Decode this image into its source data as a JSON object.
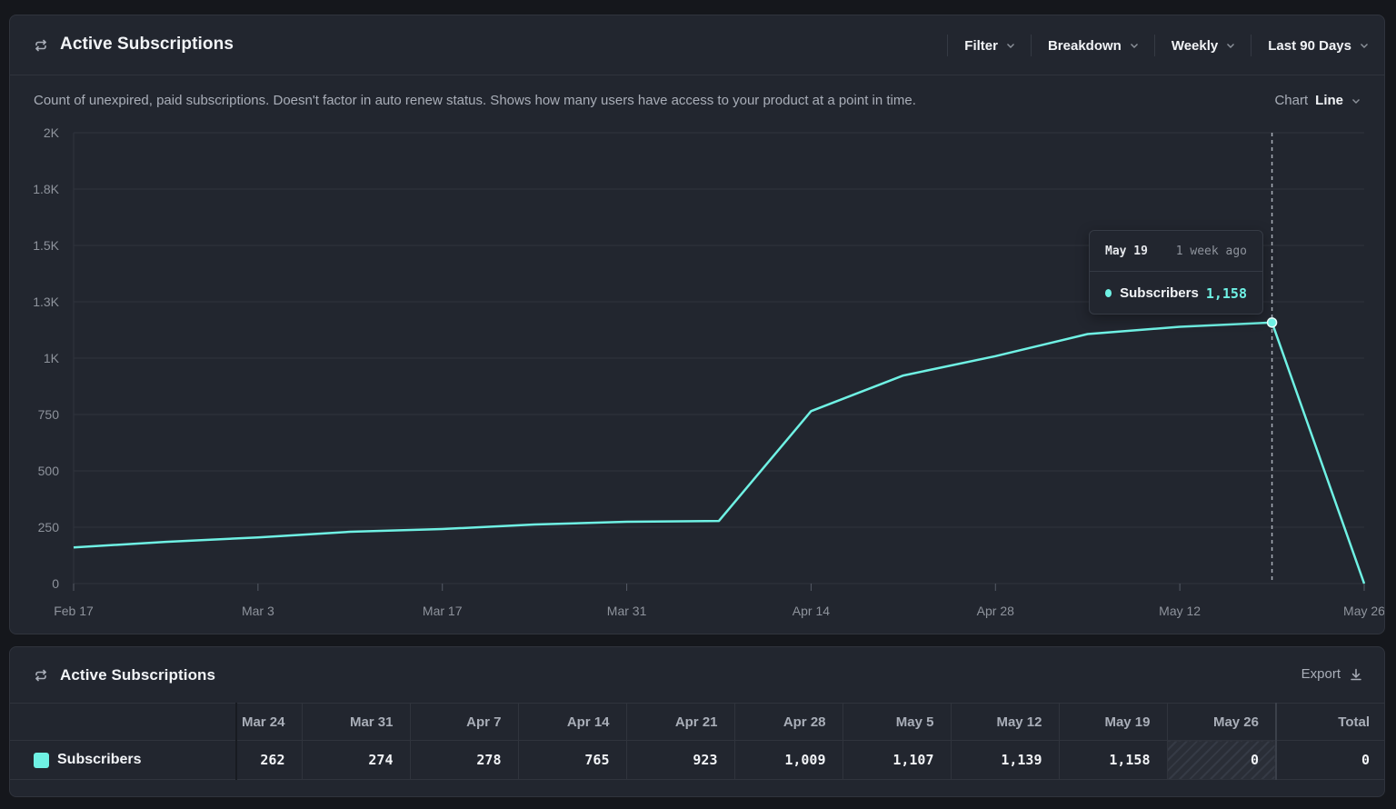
{
  "chart_panel": {
    "title": "Active Subscriptions",
    "controls": [
      "Filter",
      "Breakdown",
      "Weekly",
      "Last 90 Days"
    ],
    "description": "Count of unexpired, paid subscriptions. Doesn't factor in auto renew status. Shows how many users have access to your product at a point in time.",
    "chart_type_label": "Chart",
    "chart_type_value": "Line"
  },
  "tooltip": {
    "date": "May 19",
    "relative": "1 week ago",
    "series": "Subscribers",
    "value": "1,158"
  },
  "table_panel": {
    "title": "Active Subscriptions",
    "export_label": "Export",
    "columns": [
      "Mar 24",
      "Mar 31",
      "Apr 7",
      "Apr 14",
      "Apr 21",
      "Apr 28",
      "May 5",
      "May 12",
      "May 19",
      "May 26",
      "Total"
    ],
    "row": {
      "name": "Subscribers",
      "values": [
        "262",
        "274",
        "278",
        "765",
        "923",
        "1,009",
        "1,107",
        "1,139",
        "1,158",
        "0",
        "0"
      ]
    }
  },
  "colors": {
    "series": "#6ff1e4",
    "background": "#22262f",
    "grid": "#30343d"
  },
  "chart_data": {
    "type": "line",
    "x_tick_labels": [
      "Feb 17",
      "Mar 3",
      "Mar 17",
      "Mar 31",
      "Apr 14",
      "Apr 28",
      "May 12",
      "May 26"
    ],
    "y_tick_labels": [
      "0",
      "250",
      "500",
      "750",
      "1K",
      "1.3K",
      "1.5K",
      "1.8K",
      "2K"
    ],
    "ylim": [
      0,
      2000
    ],
    "x": [
      "Feb 17",
      "Feb 24",
      "Mar 3",
      "Mar 10",
      "Mar 17",
      "Mar 24",
      "Mar 31",
      "Apr 7",
      "Apr 14",
      "Apr 21",
      "Apr 28",
      "May 5",
      "May 12",
      "May 19",
      "May 26"
    ],
    "series": [
      {
        "name": "Subscribers",
        "values": [
          160,
          185,
          205,
          230,
          242,
          262,
          274,
          278,
          765,
          923,
          1009,
          1107,
          1139,
          1158,
          0
        ]
      }
    ],
    "highlight_x": "May 19",
    "grid": true,
    "legend": "none"
  }
}
